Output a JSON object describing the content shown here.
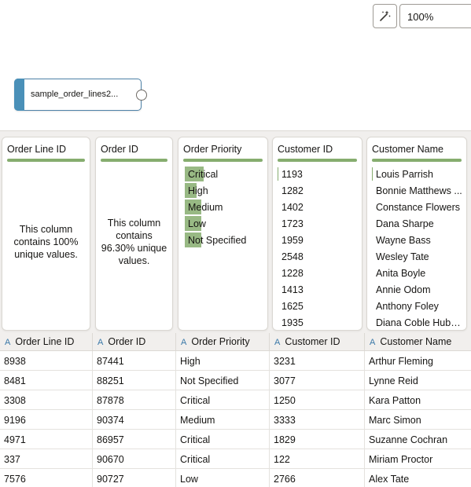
{
  "toolbar": {
    "magic_icon": "magic-wand-icon",
    "zoom_value": "100%"
  },
  "node": {
    "label": "sample_order_lines2..."
  },
  "profile": {
    "order_line_id": {
      "title": "Order Line ID",
      "message": "This column contains 100% unique values."
    },
    "order_id": {
      "title": "Order ID",
      "message": "This column contains 96.30% unique values."
    },
    "order_priority": {
      "title": "Order Priority",
      "items": [
        {
          "label": "Critical",
          "fraction": 1.0
        },
        {
          "label": "High",
          "fraction": 0.62
        },
        {
          "label": "Medium",
          "fraction": 0.87
        },
        {
          "label": "Low",
          "fraction": 0.87
        },
        {
          "label": "Not Specified",
          "fraction": 0.87
        }
      ]
    },
    "customer_id": {
      "title": "Customer ID",
      "items": [
        "1193",
        "1282",
        "1402",
        "1723",
        "1959",
        "2548",
        "1228",
        "1413",
        "1625",
        "1935"
      ]
    },
    "customer_name": {
      "title": "Customer Name",
      "items": [
        "Louis Parrish",
        "Bonnie Matthews ...",
        "Constance Flowers",
        "Dana Sharpe",
        "Wayne Bass",
        "Wesley Tate",
        "Anita Boyle",
        "Annie Odom",
        "Anthony Foley",
        "Diana Coble Hubb..."
      ]
    }
  },
  "table": {
    "type_icon": "A",
    "columns": [
      "Order Line ID",
      "Order ID",
      "Order Priority",
      "Customer ID",
      "Customer Name"
    ],
    "rows": [
      [
        "8938",
        "87441",
        "High",
        "3231",
        "Arthur Fleming"
      ],
      [
        "8481",
        "88251",
        "Not Specified",
        "3077",
        "Lynne Reid"
      ],
      [
        "3308",
        "87878",
        "Critical",
        "1250",
        "Kara Patton"
      ],
      [
        "9196",
        "90374",
        "Medium",
        "3333",
        "Marc Simon"
      ],
      [
        "4971",
        "86957",
        "Critical",
        "1829",
        "Suzanne Cochran"
      ],
      [
        "337",
        "90670",
        "Critical",
        "122",
        "Miriam Proctor"
      ],
      [
        "7576",
        "90727",
        "Low",
        "2766",
        "Alex Tate"
      ]
    ]
  },
  "colors": {
    "accent_green": "#86ad6f",
    "node_blue": "#4a90b8"
  }
}
